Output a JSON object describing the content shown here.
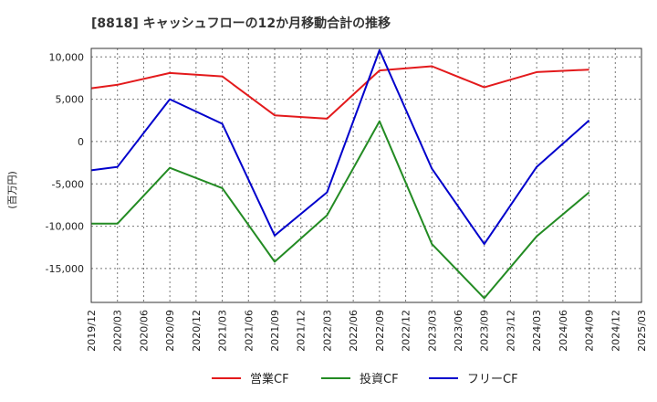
{
  "chart_data": {
    "type": "line",
    "title": "[8818]  キャッシュフローの12か月移動合計の推移",
    "ylabel": "(百万円)",
    "xlabel": "",
    "ylim": [
      -19000,
      11000
    ],
    "yticks": [
      10000,
      5000,
      0,
      -5000,
      -10000,
      -15000
    ],
    "ytick_labels": [
      "10,000",
      "5,000",
      "0",
      "-5,000",
      "-10,000",
      "-15,000"
    ],
    "x_categories": [
      "2019/12",
      "2020/03",
      "2020/06",
      "2020/09",
      "2020/12",
      "2021/03",
      "2021/06",
      "2021/09",
      "2021/12",
      "2022/03",
      "2022/06",
      "2022/09",
      "2022/12",
      "2023/03",
      "2023/06",
      "2023/09",
      "2023/12",
      "2024/03",
      "2024/06",
      "2024/09",
      "2024/12",
      "2025/03"
    ],
    "grid": true,
    "legend_position": "bottom",
    "series": [
      {
        "name": "営業CF",
        "color": "#e31a1c",
        "points": [
          {
            "x": "2019/12",
            "y": 6300
          },
          {
            "x": "2020/03",
            "y": 6700
          },
          {
            "x": "2020/09",
            "y": 8100
          },
          {
            "x": "2021/03",
            "y": 7700
          },
          {
            "x": "2021/09",
            "y": 3100
          },
          {
            "x": "2022/03",
            "y": 2700
          },
          {
            "x": "2022/09",
            "y": 8400
          },
          {
            "x": "2023/03",
            "y": 8900
          },
          {
            "x": "2023/09",
            "y": 6400
          },
          {
            "x": "2024/03",
            "y": 8200
          },
          {
            "x": "2024/09",
            "y": 8500
          }
        ]
      },
      {
        "name": "投資CF",
        "color": "#238b23",
        "points": [
          {
            "x": "2019/12",
            "y": -9700
          },
          {
            "x": "2020/03",
            "y": -9700
          },
          {
            "x": "2020/09",
            "y": -3100
          },
          {
            "x": "2021/03",
            "y": -5500
          },
          {
            "x": "2021/09",
            "y": -14200
          },
          {
            "x": "2022/03",
            "y": -8700
          },
          {
            "x": "2022/09",
            "y": 2400
          },
          {
            "x": "2023/03",
            "y": -12100
          },
          {
            "x": "2023/09",
            "y": -18500
          },
          {
            "x": "2024/03",
            "y": -11200
          },
          {
            "x": "2024/09",
            "y": -6000
          }
        ]
      },
      {
        "name": "フリーCF",
        "color": "#0000cc",
        "points": [
          {
            "x": "2019/12",
            "y": -3400
          },
          {
            "x": "2020/03",
            "y": -3000
          },
          {
            "x": "2020/09",
            "y": 5000
          },
          {
            "x": "2021/03",
            "y": 2100
          },
          {
            "x": "2021/09",
            "y": -11100
          },
          {
            "x": "2022/03",
            "y": -6000
          },
          {
            "x": "2022/09",
            "y": 10800
          },
          {
            "x": "2023/03",
            "y": -3200
          },
          {
            "x": "2023/09",
            "y": -12100
          },
          {
            "x": "2024/03",
            "y": -3000
          },
          {
            "x": "2024/09",
            "y": 2500
          }
        ]
      }
    ]
  }
}
